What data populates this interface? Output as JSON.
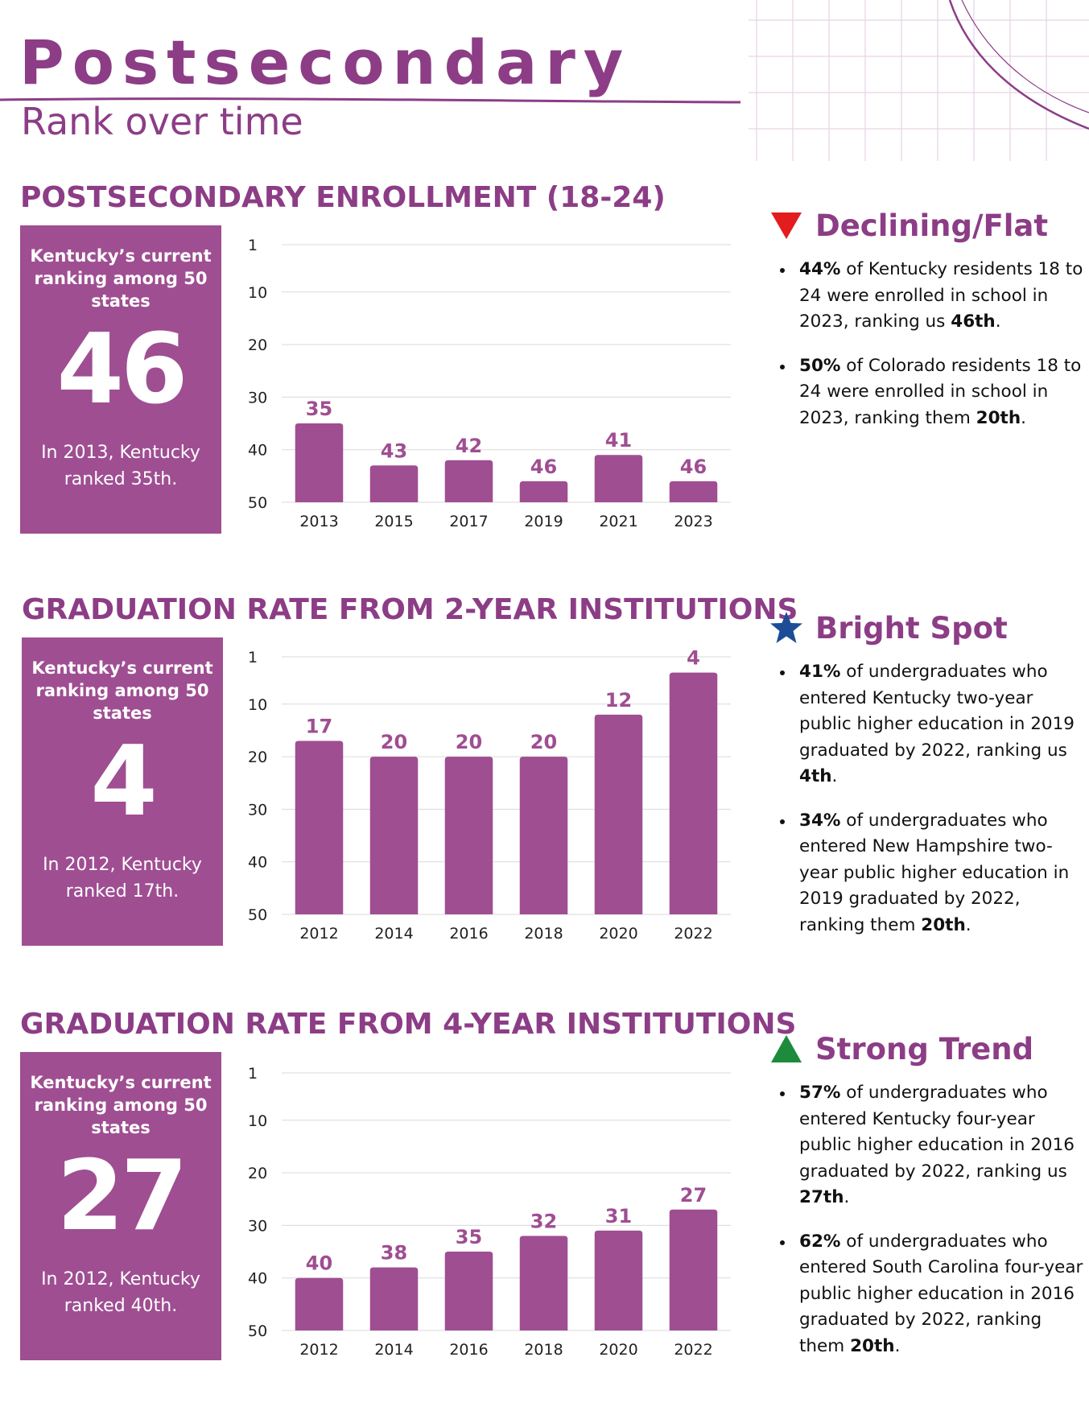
{
  "header": {
    "title": "Postsecondary",
    "subtitle": "Rank over time"
  },
  "colors": {
    "brand": "#8c3d86",
    "bar": "#9f4e92",
    "declining": "#e31d1d",
    "bright": "#1c4d96",
    "strong": "#1e8a3c"
  },
  "box_label": "Kentucky’s current ranking among 50 states",
  "sections": [
    {
      "title": "POSTSECONDARY ENROLLMENT (18-24)",
      "rank": "46",
      "note": "In 2013, Kentucky ranked 35th.",
      "status": {
        "label": "Declining/Flat",
        "icon": "down-triangle-icon",
        "bullets": [
          {
            "bold": "44%",
            "text": " of Kentucky residents 18 to 24 were enrolled in school in 2023, ranking us ",
            "rank": "46th",
            "end": "."
          },
          {
            "bold": "50%",
            "text": " of Colorado residents 18 to 24 were enrolled in school in 2023, ranking them ",
            "rank": "20th",
            "end": "."
          }
        ]
      }
    },
    {
      "title": "GRADUATION RATE FROM 2-YEAR INSTITUTIONS",
      "rank": "4",
      "note": "In 2012, Kentucky ranked 17th.",
      "status": {
        "label": "Bright Spot",
        "icon": "star-icon",
        "bullets": [
          {
            "bold": "41%",
            "text": " of undergraduates who entered Kentucky two-year public higher education in 2019 graduated by 2022, ranking us ",
            "rank": "4th",
            "end": "."
          },
          {
            "bold": "34%",
            "text": " of undergraduates who entered New Hampshire two-year public higher education in 2019 graduated by 2022, ranking them ",
            "rank": "20th",
            "end": "."
          }
        ]
      }
    },
    {
      "title": "GRADUATION RATE FROM 4-YEAR INSTITUTIONS",
      "rank": "27",
      "note": "In 2012, Kentucky ranked 40th.",
      "status": {
        "label": "Strong Trend",
        "icon": "up-triangle-icon",
        "bullets": [
          {
            "bold": "57%",
            "text": " of undergraduates who entered Kentucky four-year public higher education in 2016 graduated by 2022, ranking us ",
            "rank": "27th",
            "end": "."
          },
          {
            "bold": "62%",
            "text": " of undergraduates who entered South Carolina four-year public higher education in 2016 graduated by 2022, ranking them ",
            "rank": "20th",
            "end": "."
          }
        ]
      }
    }
  ],
  "chart_data": [
    {
      "type": "bar",
      "title": "POSTSECONDARY ENROLLMENT (18-24)",
      "categories": [
        "2013",
        "2015",
        "2017",
        "2019",
        "2021",
        "2023"
      ],
      "values": [
        35,
        43,
        42,
        46,
        41,
        46
      ],
      "yticks": [
        1,
        10,
        20,
        30,
        40,
        50
      ],
      "ylim": [
        1,
        50
      ],
      "y_inverted": true,
      "grid": true
    },
    {
      "type": "bar",
      "title": "GRADUATION RATE FROM 2-YEAR INSTITUTIONS",
      "categories": [
        "2012",
        "2014",
        "2016",
        "2018",
        "2020",
        "2022"
      ],
      "values": [
        17,
        20,
        20,
        20,
        12,
        4
      ],
      "yticks": [
        1,
        10,
        20,
        30,
        40,
        50
      ],
      "ylim": [
        1,
        50
      ],
      "y_inverted": true,
      "grid": true
    },
    {
      "type": "bar",
      "title": "GRADUATION RATE FROM 4-YEAR INSTITUTIONS",
      "categories": [
        "2012",
        "2014",
        "2016",
        "2018",
        "2020",
        "2022"
      ],
      "values": [
        40,
        38,
        35,
        32,
        31,
        27
      ],
      "yticks": [
        1,
        10,
        20,
        30,
        40,
        50
      ],
      "ylim": [
        1,
        50
      ],
      "y_inverted": true,
      "grid": true
    }
  ]
}
